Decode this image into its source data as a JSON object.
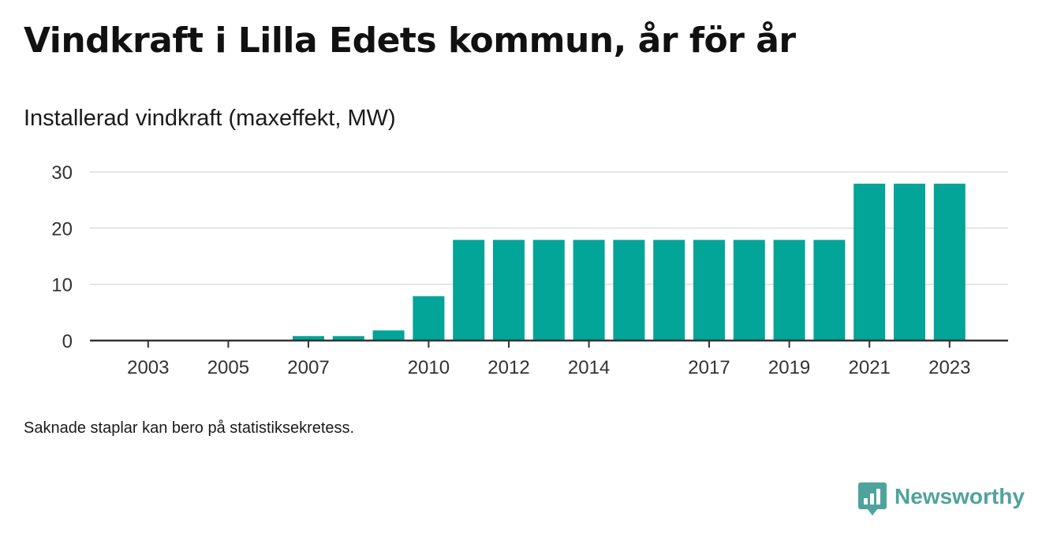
{
  "header": {
    "title": "Vindkraft i Lilla Edets kommun, år för år",
    "subtitle": "Installerad vindkraft (maxeffekt, MW)"
  },
  "footer": {
    "note": "Saknade staplar kan bero på statistiksekretess.",
    "brand": "Newsworthy"
  },
  "colors": {
    "bar": "#02a597",
    "grid": "#dddddd",
    "axis": "#333333",
    "brand": "#4fa39b"
  },
  "chart_data": {
    "type": "bar",
    "title": "Vindkraft i Lilla Edets kommun, år för år",
    "ylabel": "Installerad vindkraft (maxeffekt, MW)",
    "xlabel": "",
    "categories": [
      "2002",
      "2003",
      "2004",
      "2005",
      "2006",
      "2007",
      "2008",
      "2009",
      "2010",
      "2011",
      "2012",
      "2013",
      "2014",
      "2015",
      "2016",
      "2017",
      "2018",
      "2019",
      "2020",
      "2021",
      "2022",
      "2023"
    ],
    "values": [
      0,
      0,
      0,
      0,
      0,
      0.8,
      0.8,
      1.8,
      7.9,
      17.9,
      17.9,
      17.9,
      17.9,
      17.9,
      17.9,
      17.9,
      17.9,
      17.9,
      17.9,
      27.9,
      27.9,
      27.9
    ],
    "x_tick_labels": [
      "2003",
      "2005",
      "2007",
      "2010",
      "2012",
      "2014",
      "2017",
      "2019",
      "2021",
      "2023"
    ],
    "y_ticks": [
      0,
      10,
      20,
      30
    ],
    "ylim": [
      0,
      30
    ],
    "grid": true,
    "legend": "none"
  }
}
